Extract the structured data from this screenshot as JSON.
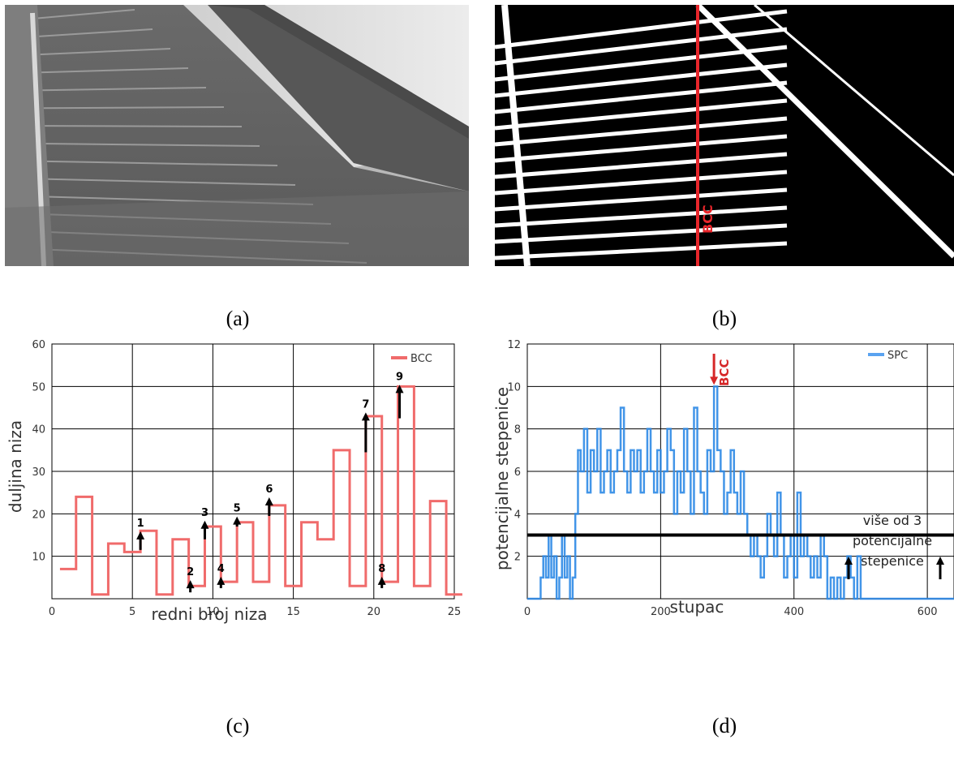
{
  "captions": {
    "a": "(a)",
    "b": "(b)",
    "c": "(c)",
    "d": "(d)"
  },
  "panel_b": {
    "line_label": "BCC",
    "line_color": "#e8262b"
  },
  "chart_data": [
    {
      "type": "line",
      "panel": "c",
      "xlabel": "redni broj niza",
      "ylabel": "duljina niza",
      "xlim": [
        0,
        25
      ],
      "ylim": [
        0,
        60
      ],
      "xticks": [
        "0",
        "5",
        "10",
        "15",
        "20",
        "25"
      ],
      "yticks": [
        "10",
        "20",
        "30",
        "40",
        "50",
        "60"
      ],
      "grid": true,
      "legend": "top-right",
      "series": [
        {
          "name": "BCC",
          "color": "#f06b6b",
          "x": [
            1,
            2,
            3,
            4,
            5,
            6,
            7,
            8,
            9,
            10,
            11,
            12,
            13,
            14,
            15,
            16,
            17,
            18,
            19,
            20,
            21,
            22,
            23,
            24,
            25
          ],
          "values": [
            7,
            24,
            1,
            13,
            11,
            16,
            1,
            14,
            3,
            17,
            4,
            18,
            4,
            22,
            3,
            18,
            14,
            35,
            3,
            43,
            4,
            50,
            3,
            23,
            1
          ]
        }
      ],
      "annotations": [
        {
          "label": "1",
          "x": 5.5,
          "y_from": 11.5,
          "y_to": 15.5,
          "label_y": 17
        },
        {
          "label": "2",
          "x": 8.6,
          "y_from": 1.5,
          "y_to": 4.0,
          "label_y": 5.5
        },
        {
          "label": "3",
          "x": 9.5,
          "y_from": 14.0,
          "y_to": 18.0,
          "label_y": 19.5
        },
        {
          "label": "4",
          "x": 10.5,
          "y_from": 2.5,
          "y_to": 4.8,
          "label_y": 6.3
        },
        {
          "label": "5",
          "x": 11.5,
          "y_from": 17.0,
          "y_to": 19.0,
          "label_y": 20.5
        },
        {
          "label": "6",
          "x": 13.5,
          "y_from": 19.5,
          "y_to": 23.5,
          "label_y": 25.0
        },
        {
          "label": "7",
          "x": 19.5,
          "y_from": 34.5,
          "y_to": 43.5,
          "label_y": 45.0
        },
        {
          "label": "8",
          "x": 20.5,
          "y_from": 2.5,
          "y_to": 4.8,
          "label_y": 6.3
        },
        {
          "label": "9",
          "x": 21.6,
          "y_from": 42.5,
          "y_to": 50.0,
          "label_y": 51.5
        }
      ]
    },
    {
      "type": "line",
      "panel": "d",
      "xlabel": "stupac",
      "ylabel": "potencijalne stepenice",
      "xlim": [
        0,
        640
      ],
      "ylim": [
        0,
        12
      ],
      "xticks": [
        "0",
        "200",
        "400",
        "600"
      ],
      "yticks": [
        "2",
        "4",
        "6",
        "8",
        "10",
        "12"
      ],
      "grid": true,
      "legend": "top-right",
      "threshold": 3,
      "bcc_marker": {
        "label": "BCC",
        "x": 280,
        "color": "#d62728"
      },
      "annotation_lines": [
        "više od 3",
        "potencijalne",
        "stepenice"
      ],
      "series": [
        {
          "name": "SPC",
          "color": "#2e8ae6",
          "x": [
            0,
            20,
            24,
            28,
            32,
            36,
            40,
            44,
            48,
            52,
            56,
            60,
            64,
            68,
            72,
            76,
            80,
            85,
            90,
            95,
            100,
            105,
            110,
            115,
            120,
            125,
            130,
            135,
            140,
            145,
            150,
            155,
            160,
            165,
            170,
            175,
            180,
            185,
            190,
            195,
            200,
            205,
            210,
            215,
            220,
            225,
            230,
            235,
            240,
            245,
            250,
            255,
            260,
            265,
            270,
            275,
            280,
            285,
            290,
            295,
            300,
            305,
            310,
            315,
            320,
            325,
            330,
            335,
            340,
            345,
            350,
            355,
            360,
            365,
            370,
            375,
            380,
            385,
            390,
            395,
            400,
            405,
            410,
            415,
            420,
            425,
            430,
            435,
            440,
            445,
            450,
            455,
            460,
            465,
            470,
            475,
            480,
            485,
            490,
            495,
            500,
            505,
            640
          ],
          "values": [
            0,
            1,
            2,
            1,
            3,
            1,
            2,
            0,
            1,
            3,
            1,
            2,
            0,
            1,
            4,
            7,
            6,
            8,
            5,
            7,
            6,
            8,
            5,
            6,
            7,
            5,
            6,
            7,
            9,
            6,
            5,
            7,
            6,
            7,
            5,
            6,
            8,
            6,
            5,
            7,
            5,
            6,
            8,
            7,
            4,
            6,
            5,
            8,
            6,
            4,
            9,
            6,
            5,
            4,
            7,
            6,
            10,
            7,
            6,
            4,
            5,
            7,
            5,
            4,
            6,
            4,
            3,
            2,
            3,
            2,
            1,
            2,
            4,
            3,
            2,
            5,
            3,
            1,
            2,
            3,
            1,
            5,
            2,
            3,
            2,
            1,
            2,
            1,
            3,
            2,
            0,
            1,
            0,
            1,
            0,
            1,
            2,
            1,
            0,
            2,
            0,
            0,
            0
          ]
        }
      ]
    }
  ]
}
